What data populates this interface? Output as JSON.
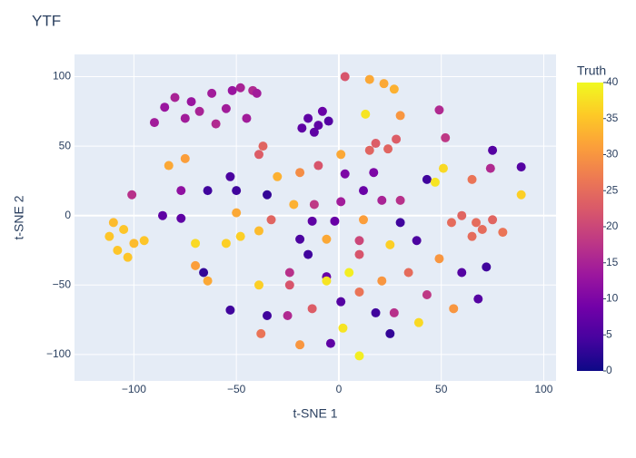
{
  "chart_data": {
    "type": "scatter",
    "title": "YTF",
    "x_label": "t-SNE 1",
    "y_label": "t-SNE 2",
    "xlim": [
      -129,
      106
    ],
    "ylim": [
      -119,
      116
    ],
    "xticks": [
      {
        "value": -100,
        "label": "−100"
      },
      {
        "value": -50,
        "label": "−50"
      },
      0,
      50,
      100
    ],
    "yticks": [
      {
        "value": -100,
        "label": "−100"
      },
      {
        "value": -50,
        "label": "−50"
      },
      0,
      50,
      100
    ],
    "grid": true,
    "x": [
      -15,
      -10,
      -8,
      -12,
      -5,
      -18,
      -90,
      -85,
      -80,
      -75,
      -72,
      -68,
      -62,
      -60,
      -55,
      -52,
      -48,
      -45,
      -42,
      -40,
      3,
      15,
      22,
      27,
      13,
      30,
      49,
      52,
      18,
      24,
      28,
      15,
      75,
      -37,
      -39,
      1,
      -75,
      -83,
      -53,
      -50,
      -30,
      -19,
      -10,
      3,
      17,
      43,
      51,
      47,
      89,
      74,
      89,
      65,
      30,
      21,
      12,
      -12,
      1,
      -35,
      -64,
      -77,
      -101,
      -77,
      -86,
      -50,
      -33,
      -22,
      -13,
      -2,
      12,
      30,
      67,
      60,
      70,
      75,
      65,
      80,
      55,
      -112,
      -105,
      -100,
      -108,
      -95,
      -110,
      -103,
      -70,
      -48,
      -55,
      -39,
      -19,
      -15,
      -6,
      10,
      10,
      25,
      38,
      49,
      72,
      60,
      -70,
      -64,
      -66,
      -24,
      -39,
      -24,
      -6,
      -6,
      5,
      21,
      10,
      34,
      43,
      68,
      56,
      -53,
      -35,
      -25,
      -13,
      1,
      18,
      27,
      2,
      25,
      -38,
      -19,
      -4,
      10,
      39
    ],
    "y": [
      70,
      65,
      75,
      60,
      68,
      63,
      67,
      78,
      85,
      70,
      82,
      75,
      88,
      66,
      77,
      90,
      92,
      70,
      90,
      88,
      100,
      98,
      95,
      91,
      73,
      72,
      76,
      56,
      52,
      48,
      55,
      47,
      47,
      50,
      44,
      44,
      41,
      36,
      28,
      18,
      28,
      31,
      36,
      30,
      31,
      26,
      34,
      24,
      35,
      34,
      15,
      26,
      11,
      11,
      18,
      8,
      10,
      15,
      18,
      18,
      15,
      -2,
      0,
      2,
      -3,
      8,
      -4,
      -4,
      -3,
      -5,
      -5,
      0,
      -10,
      -3,
      -15,
      -12,
      -5,
      -15,
      -10,
      -20,
      -25,
      -18,
      -5,
      -30,
      -20,
      -15,
      -20,
      -11,
      -17,
      -28,
      -17,
      -18,
      -28,
      -21,
      -18,
      -31,
      -37,
      -41,
      -36,
      -47,
      -41,
      -41,
      -50,
      -50,
      -44,
      -47,
      -41,
      -47,
      -55,
      -41,
      -57,
      -60,
      -67,
      -68,
      -72,
      -72,
      -67,
      -62,
      -70,
      -70,
      -81,
      -85,
      -85,
      -93,
      -92,
      -101,
      -77
    ],
    "truth": [
      7,
      7,
      8,
      7,
      6,
      7,
      14,
      13,
      15,
      14,
      13,
      15,
      14,
      16,
      14,
      13,
      15,
      14,
      16,
      14,
      22,
      32,
      32,
      33,
      38,
      30,
      16,
      18,
      23,
      24,
      23,
      24,
      6,
      24,
      23,
      32,
      31,
      32,
      5,
      4,
      33,
      29,
      22,
      10,
      10,
      4,
      37,
      38,
      6,
      16,
      36,
      26,
      17,
      15,
      8,
      18,
      14,
      3,
      4,
      12,
      17,
      7,
      7,
      32,
      24,
      33,
      7,
      8,
      31,
      4,
      25,
      24,
      25,
      24,
      25,
      26,
      25,
      35,
      35,
      34,
      35,
      35,
      34,
      35,
      37,
      36,
      36,
      34,
      5,
      4,
      32,
      20,
      22,
      36,
      5,
      30,
      4,
      6,
      31,
      32,
      3,
      17,
      36,
      22,
      8,
      38,
      39,
      30,
      26,
      25,
      18,
      6,
      30,
      4,
      4,
      16,
      23,
      6,
      4,
      17,
      38,
      3,
      26,
      30,
      7,
      39,
      37
    ],
    "colorbar": {
      "title": "Truth",
      "lim": [
        0,
        40
      ],
      "ticks": [
        0,
        5,
        10,
        15,
        20,
        25,
        30,
        35,
        40
      ]
    },
    "colorscale": [
      "#0d0887",
      "#46039f",
      "#7201a8",
      "#9c179e",
      "#bd3786",
      "#d8576b",
      "#ed7953",
      "#fb9f3a",
      "#fdca26",
      "#f0f921"
    ]
  }
}
